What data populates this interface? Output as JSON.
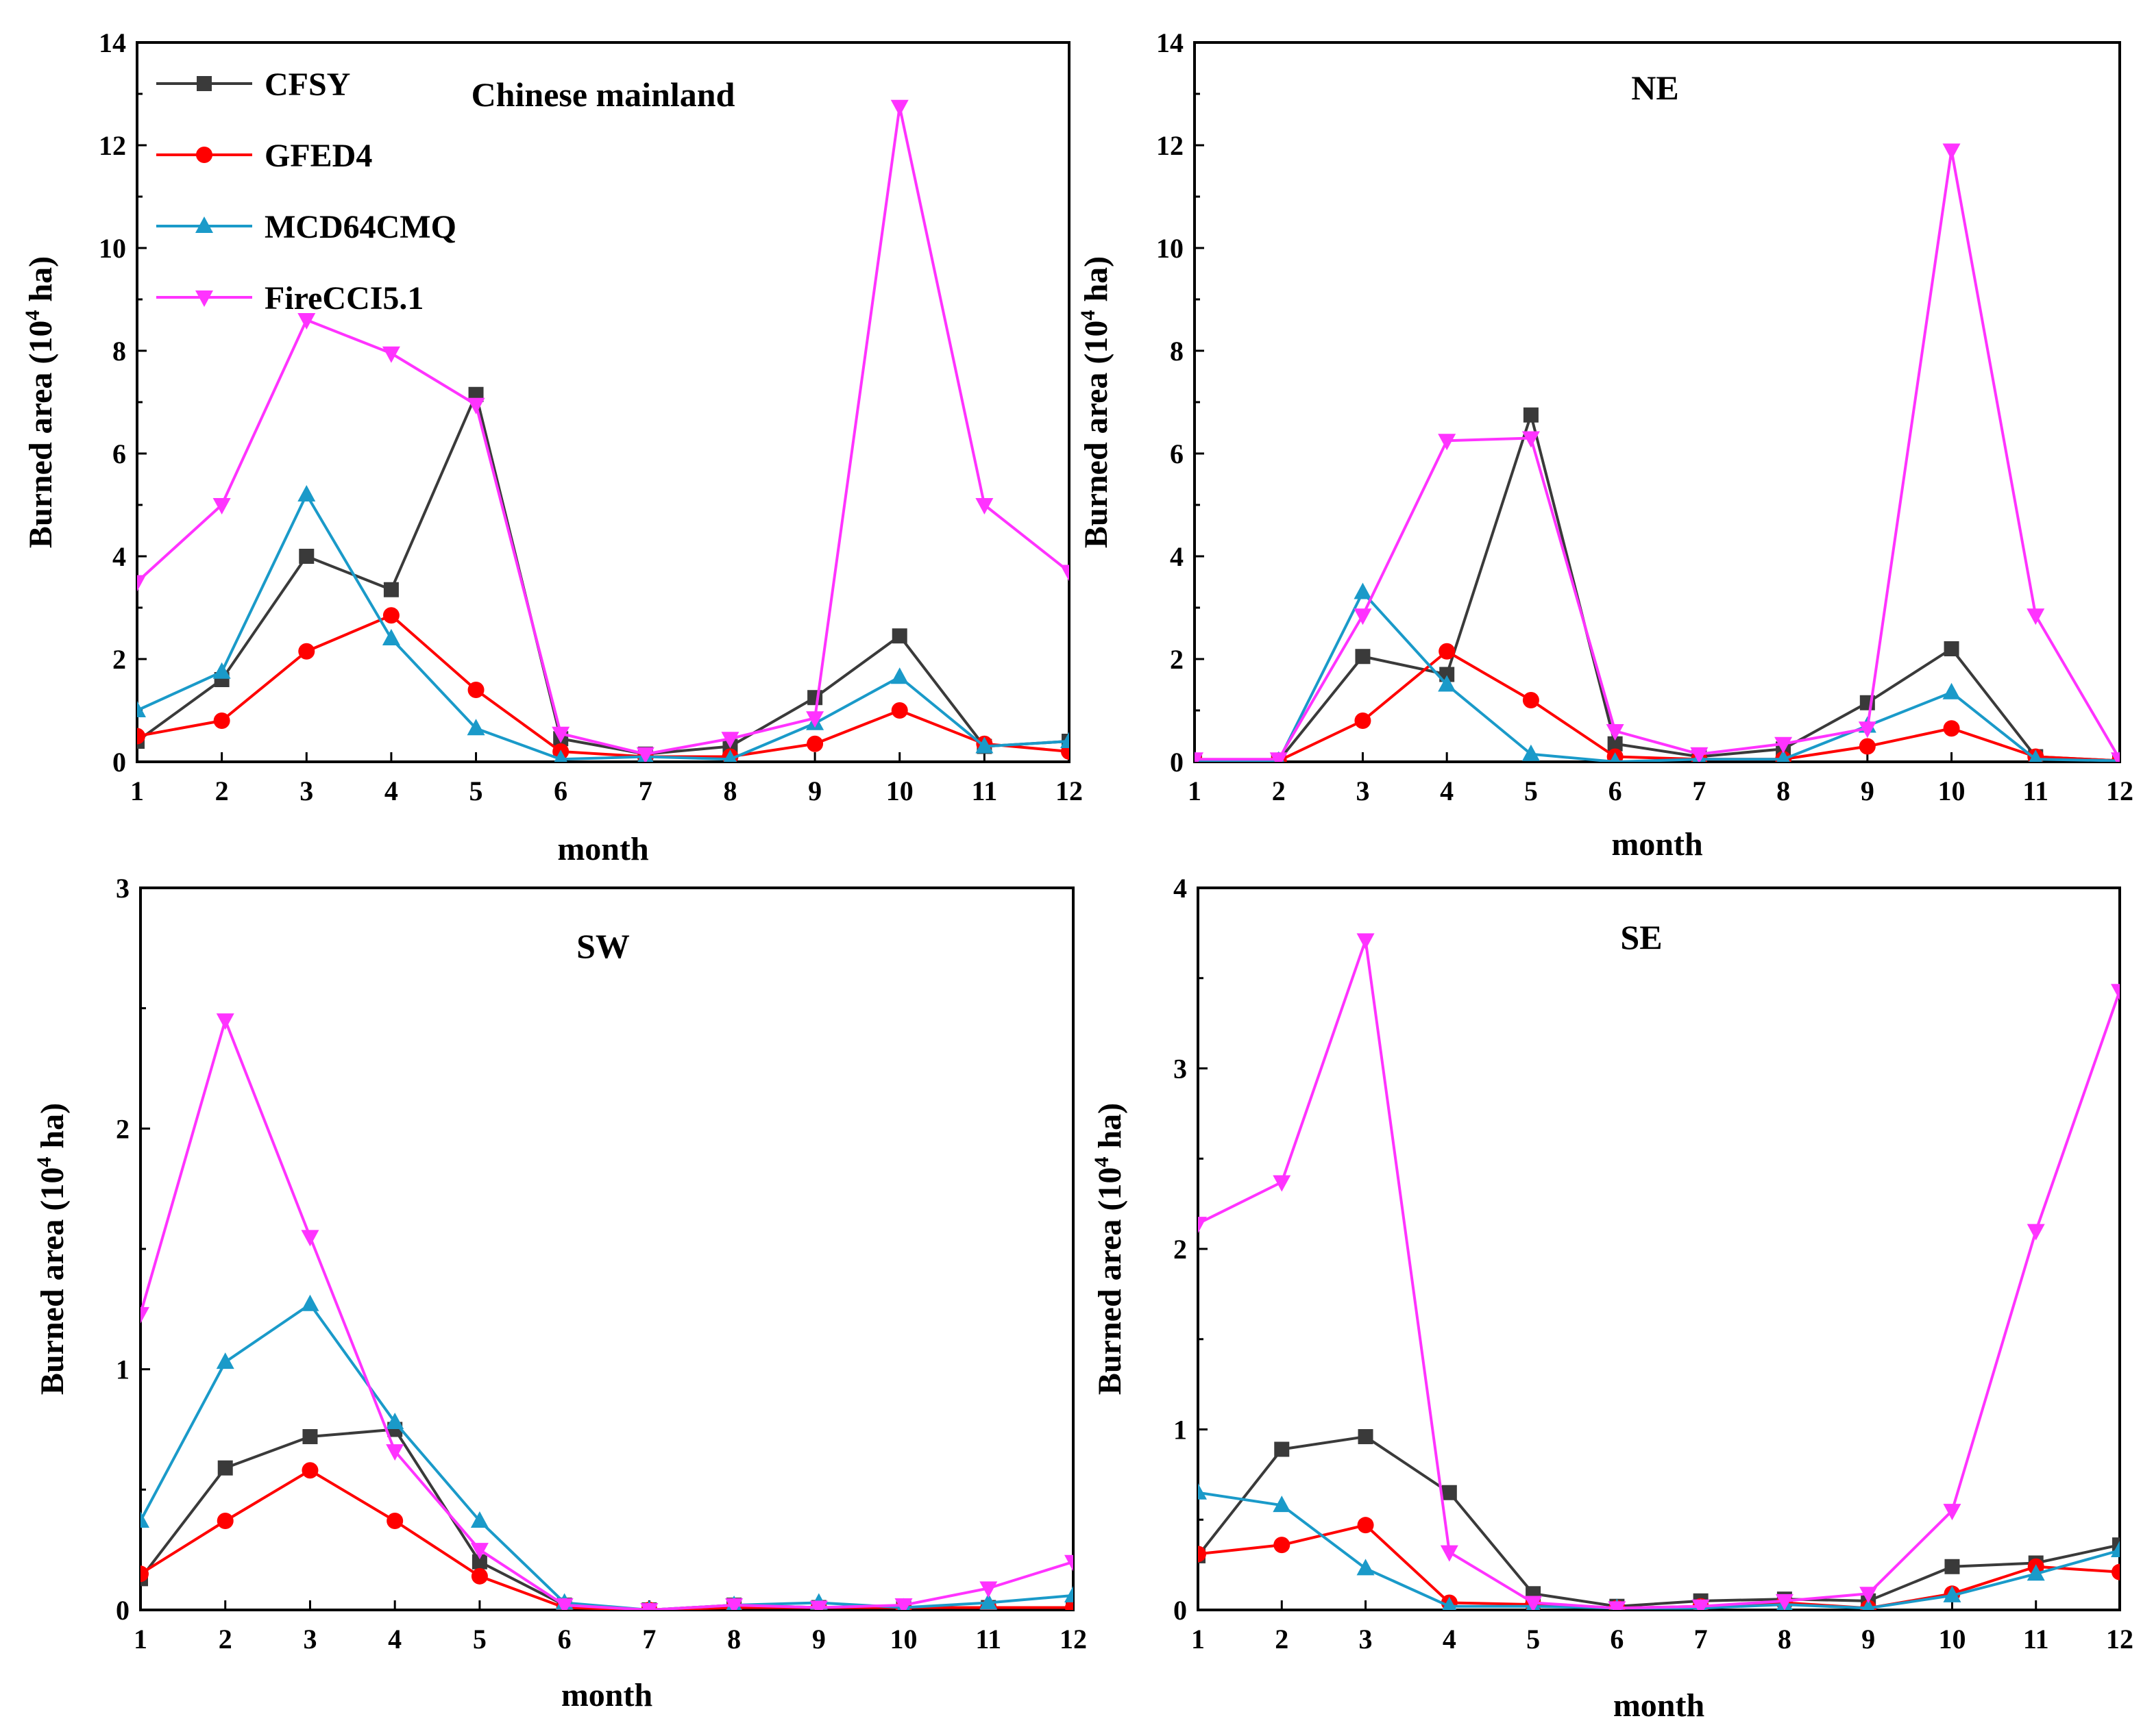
{
  "chart_data": [
    {
      "type": "line",
      "title": "Chinese mainland",
      "xlabel": "month",
      "ylabel": "Burned area (10",
      "ylabel_sup": "4",
      "ylabel_tail": " ha)",
      "categories": [
        "1",
        "2",
        "3",
        "4",
        "5",
        "6",
        "7",
        "8",
        "9",
        "10",
        "11",
        "12"
      ],
      "xlim": [
        1,
        12
      ],
      "ylim": [
        0,
        14
      ],
      "yticks": [
        "0",
        "2",
        "4",
        "6",
        "8",
        "10",
        "12",
        "14"
      ],
      "legend": "top-left",
      "series": [
        {
          "name": "CFSY",
          "values": [
            0.4,
            1.6,
            4.0,
            3.35,
            7.15,
            0.45,
            0.15,
            0.3,
            1.25,
            2.45,
            0.3,
            0.4
          ]
        },
        {
          "name": "GFED4",
          "values": [
            0.5,
            0.8,
            2.15,
            2.85,
            1.4,
            0.2,
            0.1,
            0.1,
            0.35,
            1.0,
            0.35,
            0.2
          ]
        },
        {
          "name": "MCD64CMQ",
          "values": [
            1.0,
            1.75,
            5.2,
            2.4,
            0.65,
            0.05,
            0.1,
            0.05,
            0.75,
            1.65,
            0.3,
            0.4
          ]
        },
        {
          "name": "FireCCI5.1",
          "values": [
            3.5,
            5.0,
            8.6,
            7.95,
            6.95,
            0.55,
            0.15,
            0.45,
            0.85,
            12.75,
            5.0,
            3.7
          ]
        }
      ]
    },
    {
      "type": "line",
      "title": "NE",
      "xlabel": "month",
      "ylabel": "Burned area (10",
      "ylabel_sup": "4",
      "ylabel_tail": " ha)",
      "categories": [
        "1",
        "2",
        "3",
        "4",
        "5",
        "6",
        "7",
        "8",
        "9",
        "10",
        "11",
        "12"
      ],
      "xlim": [
        1,
        12
      ],
      "ylim": [
        0,
        14
      ],
      "yticks": [
        "0",
        "2",
        "4",
        "6",
        "8",
        "10",
        "12",
        "14"
      ],
      "series": [
        {
          "name": "CFSY",
          "values": [
            0.02,
            0.02,
            2.05,
            1.7,
            6.75,
            0.35,
            0.1,
            0.25,
            1.15,
            2.2,
            0.1,
            0.02
          ]
        },
        {
          "name": "GFED4",
          "values": [
            0.02,
            0.02,
            0.8,
            2.15,
            1.2,
            0.1,
            0.05,
            0.05,
            0.3,
            0.65,
            0.1,
            0.02
          ]
        },
        {
          "name": "MCD64CMQ",
          "values": [
            0.02,
            0.02,
            3.3,
            1.5,
            0.15,
            0.0,
            0.05,
            0.05,
            0.7,
            1.35,
            0.05,
            0.02
          ]
        },
        {
          "name": "FireCCI5.1",
          "values": [
            0.05,
            0.05,
            2.85,
            6.25,
            6.3,
            0.6,
            0.15,
            0.35,
            0.65,
            11.9,
            2.85,
            0.05
          ]
        }
      ]
    },
    {
      "type": "line",
      "title": "SW",
      "xlabel": "month",
      "ylabel": "Burned area (10",
      "ylabel_sup": "4",
      "ylabel_tail": " ha)",
      "categories": [
        "1",
        "2",
        "3",
        "4",
        "5",
        "6",
        "7",
        "8",
        "9",
        "10",
        "11",
        "12"
      ],
      "xlim": [
        1,
        12
      ],
      "ylim": [
        0,
        3
      ],
      "yticks": [
        "0",
        "1",
        "2",
        "3"
      ],
      "series": [
        {
          "name": "CFSY",
          "values": [
            0.13,
            0.59,
            0.72,
            0.75,
            0.2,
            0.02,
            0.0,
            0.02,
            0.01,
            0.01,
            0.01,
            0.01
          ]
        },
        {
          "name": "GFED4",
          "values": [
            0.15,
            0.37,
            0.58,
            0.37,
            0.14,
            0.01,
            0.0,
            0.01,
            0.01,
            0.01,
            0.01,
            0.01
          ]
        },
        {
          "name": "MCD64CMQ",
          "values": [
            0.37,
            1.03,
            1.27,
            0.78,
            0.37,
            0.03,
            0.0,
            0.02,
            0.03,
            0.01,
            0.03,
            0.06
          ]
        },
        {
          "name": "FireCCI5.1",
          "values": [
            1.23,
            2.45,
            1.55,
            0.66,
            0.25,
            0.02,
            0.0,
            0.02,
            0.01,
            0.02,
            0.09,
            0.2
          ]
        }
      ]
    },
    {
      "type": "line",
      "title": "SE",
      "xlabel": "month",
      "ylabel": "Burned area (10",
      "ylabel_sup": "4",
      "ylabel_tail": " ha)",
      "categories": [
        "1",
        "2",
        "3",
        "4",
        "5",
        "6",
        "7",
        "8",
        "9",
        "10",
        "11",
        "12"
      ],
      "xlim": [
        1,
        12
      ],
      "ylim": [
        0,
        4
      ],
      "yticks": [
        "0",
        "1",
        "2",
        "3",
        "4"
      ],
      "series": [
        {
          "name": "CFSY",
          "values": [
            0.3,
            0.89,
            0.96,
            0.65,
            0.09,
            0.02,
            0.05,
            0.06,
            0.05,
            0.24,
            0.26,
            0.36
          ]
        },
        {
          "name": "GFED4",
          "values": [
            0.31,
            0.36,
            0.47,
            0.04,
            0.03,
            0.01,
            0.02,
            0.04,
            0.01,
            0.09,
            0.24,
            0.21
          ]
        },
        {
          "name": "MCD64CMQ",
          "values": [
            0.65,
            0.58,
            0.23,
            0.02,
            0.02,
            0.01,
            0.01,
            0.03,
            0.01,
            0.08,
            0.2,
            0.33
          ]
        },
        {
          "name": "FireCCI5.1",
          "values": [
            2.14,
            2.37,
            3.71,
            0.32,
            0.04,
            0.01,
            0.02,
            0.05,
            0.09,
            0.55,
            2.1,
            3.43
          ]
        }
      ]
    }
  ],
  "series_style": {
    "CFSY": {
      "color": "#3a3a3a",
      "marker": "square"
    },
    "GFED4": {
      "color": "#ff0000",
      "marker": "circle"
    },
    "MCD64CMQ": {
      "color": "#1a9ac9",
      "marker": "triangle-up"
    },
    "FireCCI5.1": {
      "color": "#ff33ff",
      "marker": "triangle-down"
    }
  }
}
